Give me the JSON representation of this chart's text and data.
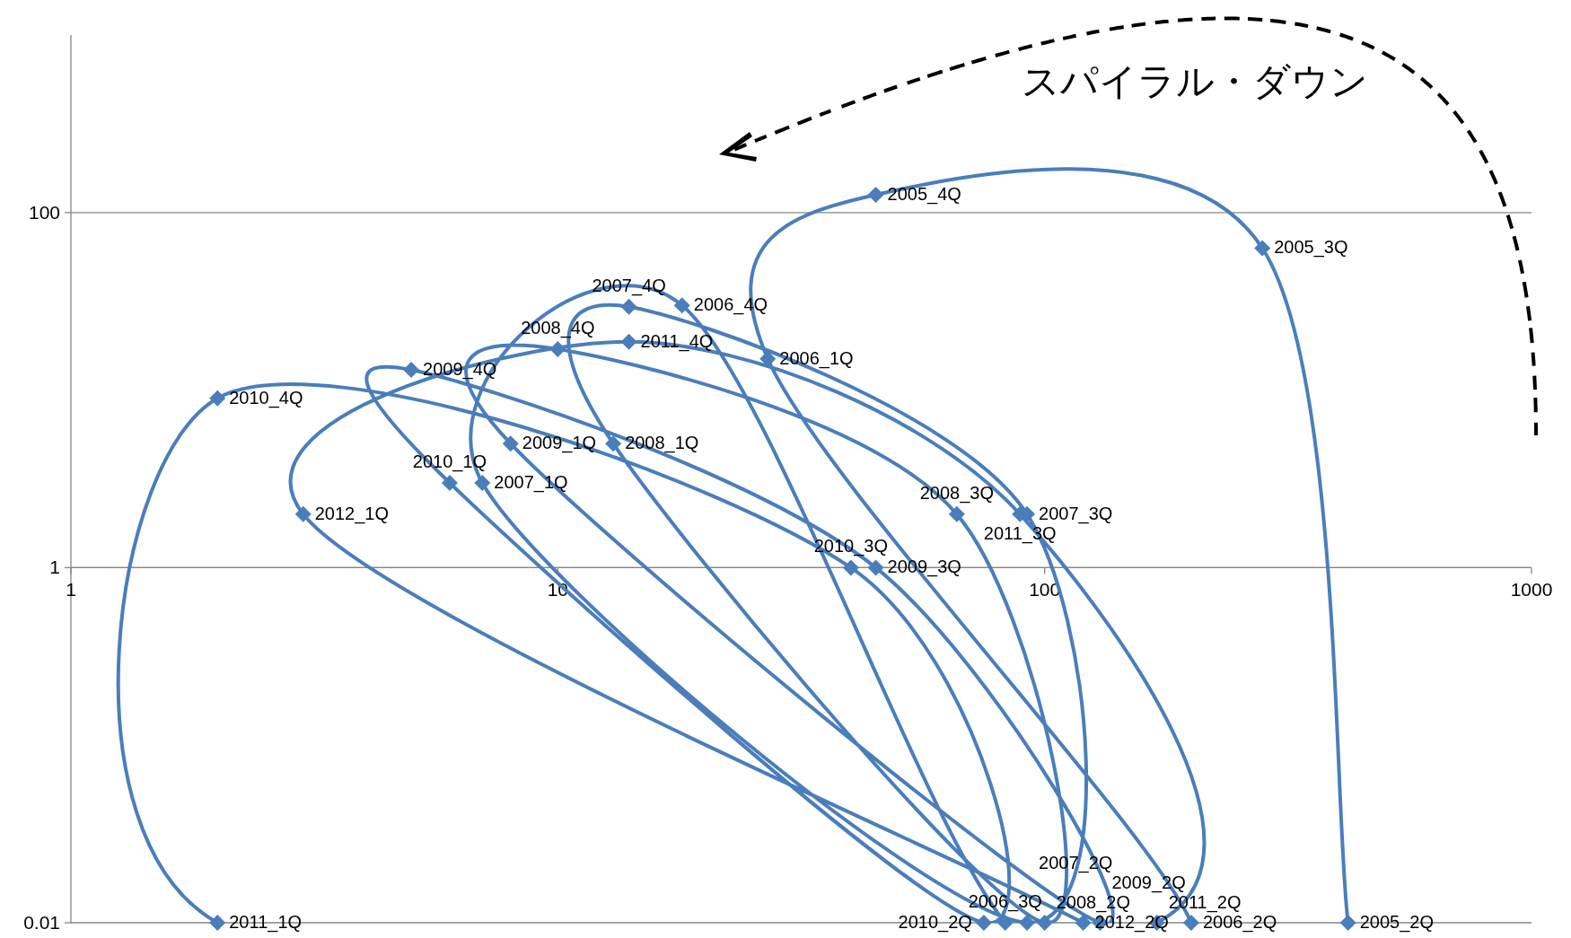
{
  "chart_data": {
    "type": "line",
    "log": "xy",
    "grid": "y",
    "marker": "diamond",
    "line_style": "solid",
    "xlim": [
      1,
      1000
    ],
    "ylim": [
      0.01,
      1000
    ],
    "xticks": [
      1,
      10,
      100,
      1000
    ],
    "yticks": [
      0.01,
      1,
      100
    ],
    "x": [
      420,
      280,
      45,
      27,
      200,
      83,
      18,
      7,
      92,
      92,
      14,
      13,
      100,
      66,
      10,
      8,
      130,
      45,
      5,
      6,
      75,
      40,
      2,
      2,
      170,
      89,
      14,
      3,
      120
    ],
    "series": [
      {
        "color": "#4a7ebb",
        "values": [
          0.01,
          63,
          126,
          15,
          0.01,
          0.01,
          30,
          3,
          0.01,
          2,
          29.5,
          5,
          0.01,
          2,
          17,
          5,
          0.01,
          1,
          13,
          3,
          0.01,
          1,
          9,
          0.01,
          0.01,
          2,
          18.7,
          2,
          0.01
        ]
      }
    ],
    "annotations": [
      "スパイラル・ダウン",
      {
        "text": "2005_2Q",
        "x": 420,
        "y": 0.01
      },
      {
        "text": "2005_3Q",
        "x": 280,
        "y": 63
      },
      {
        "text": "2005_4Q",
        "x": 45,
        "y": 126
      },
      {
        "text": "2006_1Q",
        "x": 27,
        "y": 15
      },
      {
        "text": "2006_2Q",
        "x": 200,
        "y": 0.01
      },
      {
        "text": "2006_3Q",
        "x": 83,
        "y": 0.01
      },
      {
        "text": "2006_4Q",
        "x": 18,
        "y": 30
      },
      {
        "text": "2007_1Q",
        "x": 7,
        "y": 3
      },
      {
        "text": "2007_2Q",
        "x": 92,
        "y": 0.01
      },
      {
        "text": "2007_3Q",
        "x": 92,
        "y": 2
      },
      {
        "text": "2007_4Q",
        "x": 14,
        "y": 29.5
      },
      {
        "text": "2008_1Q",
        "x": 13,
        "y": 5
      },
      {
        "text": "2008_2Q",
        "x": 100,
        "y": 0.01
      },
      {
        "text": "2008_3Q",
        "x": 66,
        "y": 2
      },
      {
        "text": "2008_4Q",
        "x": 10,
        "y": 17
      },
      {
        "text": "2009_1Q",
        "x": 8,
        "y": 5
      },
      {
        "text": "2009_2Q",
        "x": 130,
        "y": 0.01
      },
      {
        "text": "2009_3Q",
        "x": 45,
        "y": 1
      },
      {
        "text": "2009_4Q",
        "x": 5,
        "y": 13
      },
      {
        "text": "2010_1Q",
        "x": 6,
        "y": 3
      },
      {
        "text": "2010_2Q",
        "x": 75,
        "y": 0.01
      },
      {
        "text": "2010_3Q",
        "x": 40,
        "y": 1
      },
      {
        "text": "2010_4Q",
        "x": 2,
        "y": 9
      },
      {
        "text": "2011_1Q",
        "x": 2,
        "y": 0.01
      },
      {
        "text": "2011_2Q",
        "x": 170,
        "y": 0.01
      },
      {
        "text": "2011_3Q",
        "x": 89,
        "y": 2
      },
      {
        "text": "2011_4Q",
        "x": 14,
        "y": 18.7
      },
      {
        "text": "2012_1Q",
        "x": 3,
        "y": 2
      },
      {
        "text": "2012_2Q",
        "x": 120,
        "y": 0.01
      }
    ]
  }
}
